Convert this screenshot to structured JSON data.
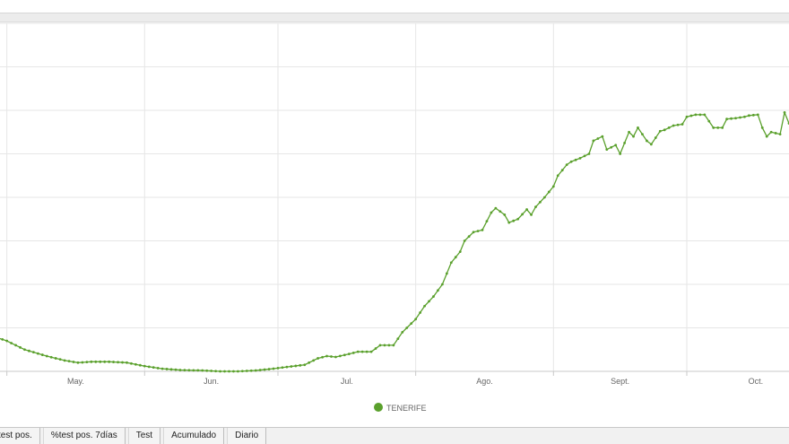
{
  "chart_data": {
    "type": "line",
    "x_tick_labels": [
      "May.",
      "Jun.",
      "Jul.",
      "Ago.",
      "Sept.",
      "Oct."
    ],
    "x_range": [
      "2020-04-23",
      "2020-10-24"
    ],
    "y_range": [
      0,
      8
    ],
    "y_gridlines": [
      1,
      2,
      3,
      4,
      5,
      6,
      7,
      8
    ],
    "grid": true,
    "legend": "bottom-center",
    "series": [
      {
        "name": "TENERIFE",
        "color": "#5aa02c",
        "x": [
          "2020-04-22",
          "2020-04-25",
          "2020-04-28",
          "2020-05-01",
          "2020-05-05",
          "2020-05-10",
          "2020-05-14",
          "2020-05-17",
          "2020-05-20",
          "2020-05-24",
          "2020-05-28",
          "2020-06-01",
          "2020-06-05",
          "2020-06-09",
          "2020-06-14",
          "2020-06-18",
          "2020-06-22",
          "2020-06-26",
          "2020-06-29",
          "2020-07-03",
          "2020-07-07",
          "2020-07-10",
          "2020-07-12",
          "2020-07-14",
          "2020-07-17",
          "2020-07-19",
          "2020-07-22",
          "2020-07-24",
          "2020-07-27",
          "2020-07-29",
          "2020-08-01",
          "2020-08-03",
          "2020-08-05",
          "2020-08-07",
          "2020-08-09",
          "2020-08-11",
          "2020-08-12",
          "2020-08-14",
          "2020-08-16",
          "2020-08-18",
          "2020-08-19",
          "2020-08-21",
          "2020-08-22",
          "2020-08-24",
          "2020-08-26",
          "2020-08-27",
          "2020-08-28",
          "2020-08-30",
          "2020-09-01",
          "2020-09-02",
          "2020-09-04",
          "2020-09-05",
          "2020-09-07",
          "2020-09-09",
          "2020-09-10",
          "2020-09-12",
          "2020-09-13",
          "2020-09-15",
          "2020-09-16",
          "2020-09-18",
          "2020-09-19",
          "2020-09-20",
          "2020-09-22",
          "2020-09-23",
          "2020-09-25",
          "2020-09-26",
          "2020-09-28",
          "2020-09-30",
          "2020-10-01",
          "2020-10-03",
          "2020-10-05",
          "2020-10-07",
          "2020-10-09",
          "2020-10-10",
          "2020-10-12",
          "2020-10-14",
          "2020-10-15",
          "2020-10-17",
          "2020-10-18",
          "2020-10-19",
          "2020-10-20",
          "2020-10-22",
          "2020-10-23",
          "2020-10-24"
        ],
        "values": [
          1.05,
          1.0,
          0.8,
          0.7,
          0.5,
          0.35,
          0.25,
          0.2,
          0.22,
          0.22,
          0.2,
          0.12,
          0.06,
          0.03,
          0.02,
          0.0,
          0.0,
          0.02,
          0.05,
          0.1,
          0.15,
          0.3,
          0.35,
          0.33,
          0.4,
          0.45,
          0.45,
          0.6,
          0.6,
          0.9,
          1.2,
          1.5,
          1.72,
          2.0,
          2.5,
          2.75,
          3.0,
          3.2,
          3.25,
          3.65,
          3.75,
          3.6,
          3.42,
          3.5,
          3.72,
          3.6,
          3.78,
          4.0,
          4.25,
          4.5,
          4.75,
          4.82,
          4.9,
          5.0,
          5.3,
          5.4,
          5.1,
          5.2,
          5.0,
          5.5,
          5.4,
          5.6,
          5.3,
          5.22,
          5.52,
          5.55,
          5.65,
          5.68,
          5.85,
          5.9,
          5.9,
          5.6,
          5.6,
          5.8,
          5.82,
          5.85,
          5.88,
          5.9,
          5.6,
          5.4,
          5.5,
          5.45,
          5.95,
          5.7
        ]
      }
    ]
  },
  "tabs": [
    {
      "label": "test pos."
    },
    {
      "label": "%test pos. 7días"
    },
    {
      "label": "Test"
    },
    {
      "label": "Acumulado"
    },
    {
      "label": "Diario"
    }
  ]
}
